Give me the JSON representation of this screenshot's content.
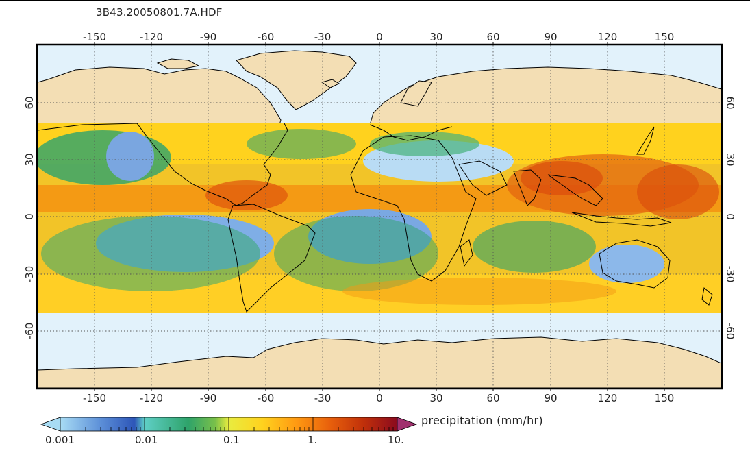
{
  "file_title": "3B43.20050801.7A.HDF",
  "map": {
    "projection": "equirectangular",
    "data_lat_band": [
      -50,
      50
    ],
    "lon_ticks": [
      "-150",
      "-120",
      "-90",
      "-60",
      "-30",
      "0",
      "30",
      "60",
      "90",
      "120",
      "150"
    ],
    "lat_ticks": [
      "60",
      "30",
      "0",
      "-30",
      "-60"
    ],
    "grid": "dotted",
    "colors": {
      "ocean_no_data": "#e2f2fb",
      "land_no_data": "#f3deb4",
      "coast": "#000000"
    }
  },
  "colorbar": {
    "title": "precipitation  (mm/hr)",
    "labels": [
      "0.001",
      "0.01",
      "0.1",
      "1.",
      "10."
    ],
    "scale": "log",
    "range": [
      0.001,
      10
    ],
    "colors": [
      "#a8dcf4",
      "#5c8fd8",
      "#2d56b8",
      "#5fcfc6",
      "#2ea36a",
      "#7ac04a",
      "#e9ec3f",
      "#ffd21e",
      "#ff9a12",
      "#e8600c",
      "#c0300a",
      "#8b0a1e",
      "#a0306e"
    ]
  }
}
